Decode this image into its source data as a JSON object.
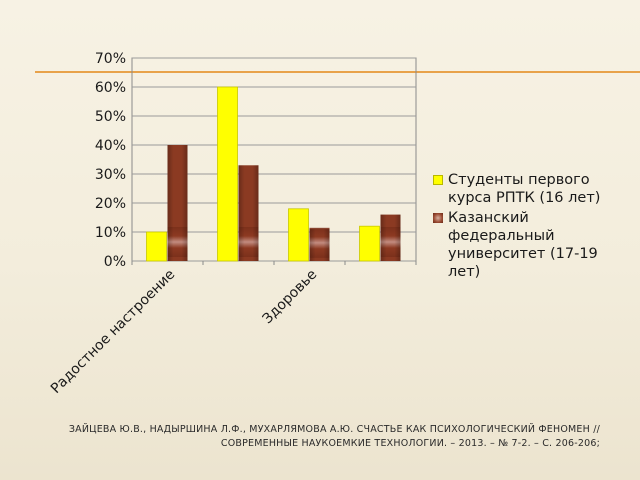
{
  "chart_data": {
    "type": "bar",
    "categories": [
      "Радостное настроение",
      "",
      "Здоровье",
      ""
    ],
    "category_tick_labels": [
      "Радостное настроение",
      "Здоровье"
    ],
    "series": [
      {
        "name": "Студенты первого курса РПТК (16 лет)",
        "values": [
          10,
          60,
          18,
          12
        ],
        "color": "#ffff00"
      },
      {
        "name": " Казанский федеральный университет (17-19 лет)",
        "values": [
          40,
          33,
          11,
          16
        ],
        "color": "#8b3a22"
      }
    ],
    "ylim": [
      0,
      70
    ],
    "y_ticks": [
      "0%",
      "10%",
      "20%",
      "30%",
      "40%",
      "50%",
      "60%",
      "70%"
    ],
    "grid": true,
    "legend_position": "right"
  },
  "footer_text_line1": "ЗАЙЦЕВА Ю.В., НАДЫРШИНА Л.Ф., МУХАРЛЯМОВА А.Ю. СЧАСТЬЕ КАК ПСИХОЛОГИЧЕСКИЙ ФЕНОМЕН //",
  "footer_text_line2": "СОВРЕМЕННЫЕ НАУКОЕМКИЕ ТЕХНОЛОГИИ. – 2013. – № 7-2. – С. 206-206;"
}
